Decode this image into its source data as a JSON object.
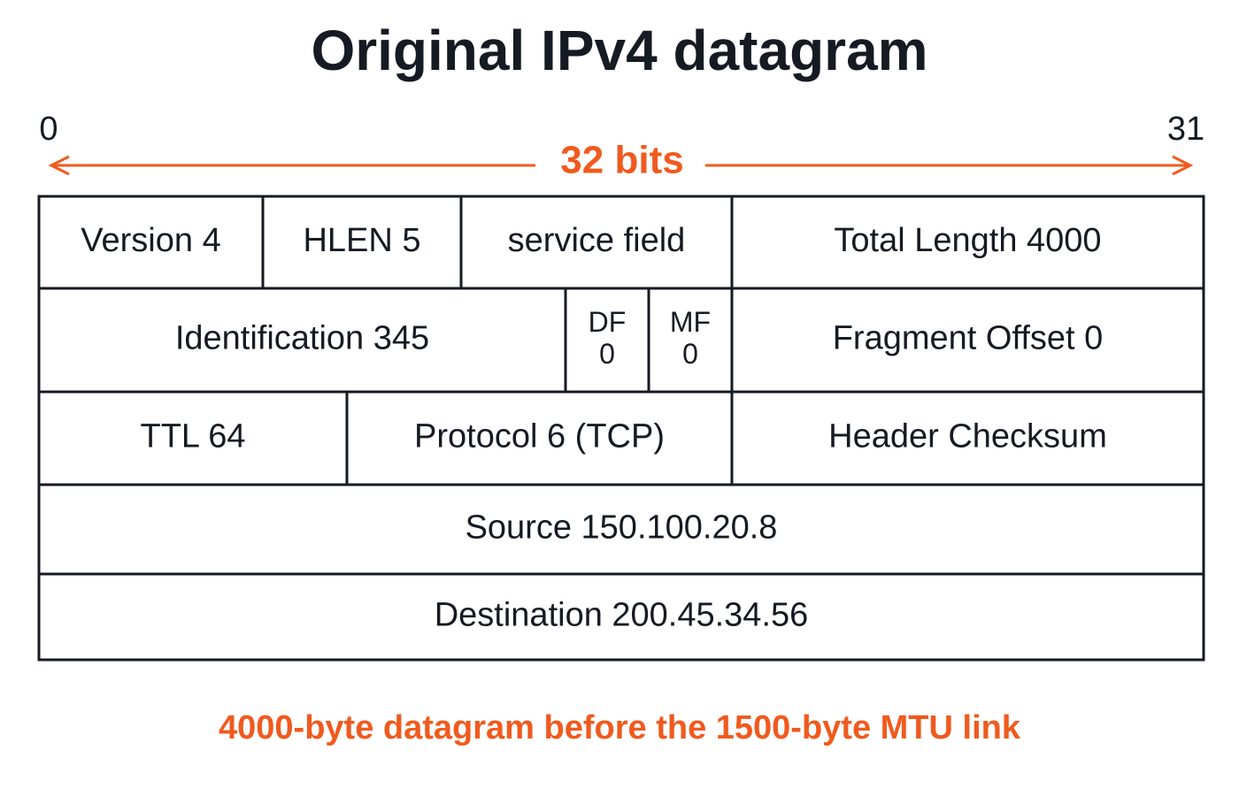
{
  "title": "Original IPv4 datagram",
  "bit_start": "0",
  "bit_end": "31",
  "width_label": "32 bits",
  "rows": [
    [
      {
        "lines": [
          "Version 4"
        ]
      },
      {
        "lines": [
          "HLEN 5"
        ]
      },
      {
        "lines": [
          "service field"
        ]
      },
      {
        "lines": [
          "Total Length 4000"
        ]
      }
    ],
    [
      {
        "lines": [
          "Identification 345"
        ]
      },
      {
        "lines": [
          "DF",
          "0"
        ]
      },
      {
        "lines": [
          "MF",
          "0"
        ]
      },
      {
        "lines": [
          "Fragment Offset 0"
        ]
      }
    ],
    [
      {
        "lines": [
          "TTL 64"
        ]
      },
      {
        "lines": [
          "Protocol 6 (TCP)"
        ]
      },
      {
        "lines": [
          "Header Checksum"
        ]
      }
    ],
    [
      {
        "lines": [
          "Source 150.100.20.8"
        ]
      }
    ],
    [
      {
        "lines": [
          "Destination 200.45.34.56"
        ]
      }
    ]
  ],
  "caption": "4000-byte datagram before the 1500-byte MTU link"
}
